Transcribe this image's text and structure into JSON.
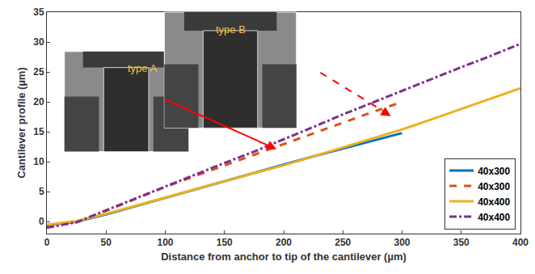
{
  "chart_data": {
    "type": "line",
    "x_label": "Distance from anchor to tip of the cantilever (µm)",
    "y_label": "Cantilever profile (µm)",
    "x": [
      0,
      25,
      50,
      75,
      100,
      125,
      150,
      175,
      200,
      225,
      250,
      275,
      300,
      325,
      350,
      375,
      400
    ],
    "series": [
      {
        "name": "40x300",
        "color": "#0072BD",
        "line_style": "solid",
        "values": [
          -0.6,
          0.0,
          1.2,
          2.6,
          4.0,
          5.4,
          6.8,
          8.2,
          9.6,
          10.9,
          12.2,
          13.5,
          14.8,
          null,
          null,
          null,
          null
        ]
      },
      {
        "name": "40x300",
        "color": "#D95319",
        "line_style": "dash",
        "values": [
          -1.0,
          -0.1,
          1.8,
          3.8,
          5.8,
          7.6,
          9.4,
          11.2,
          13.0,
          14.8,
          16.5,
          18.3,
          20.0,
          null,
          null,
          null,
          null
        ]
      },
      {
        "name": "40x400",
        "color": "#EDB120",
        "line_style": "solid",
        "values": [
          -0.5,
          0.1,
          1.3,
          2.6,
          4.0,
          5.4,
          6.8,
          8.1,
          9.4,
          10.9,
          12.4,
          13.9,
          15.4,
          17.1,
          18.8,
          20.5,
          22.3
        ]
      },
      {
        "name": "40x400",
        "color": "#7E2F8E",
        "line_style": "dashdot",
        "values": [
          -1.0,
          -0.1,
          1.9,
          3.9,
          5.9,
          7.8,
          9.8,
          11.7,
          13.7,
          15.8,
          17.9,
          19.9,
          21.9,
          23.8,
          25.8,
          27.7,
          29.7
        ]
      }
    ],
    "xlim": [
      0,
      400
    ],
    "xticks": [
      0,
      50,
      100,
      150,
      200,
      250,
      300,
      350,
      400
    ],
    "ylim": [
      -2,
      35
    ],
    "yticks": [
      0,
      5,
      10,
      15,
      20,
      25,
      30,
      35
    ],
    "annotations": [
      "type A",
      "type B"
    ],
    "grid": false,
    "legend": "bottom right"
  }
}
